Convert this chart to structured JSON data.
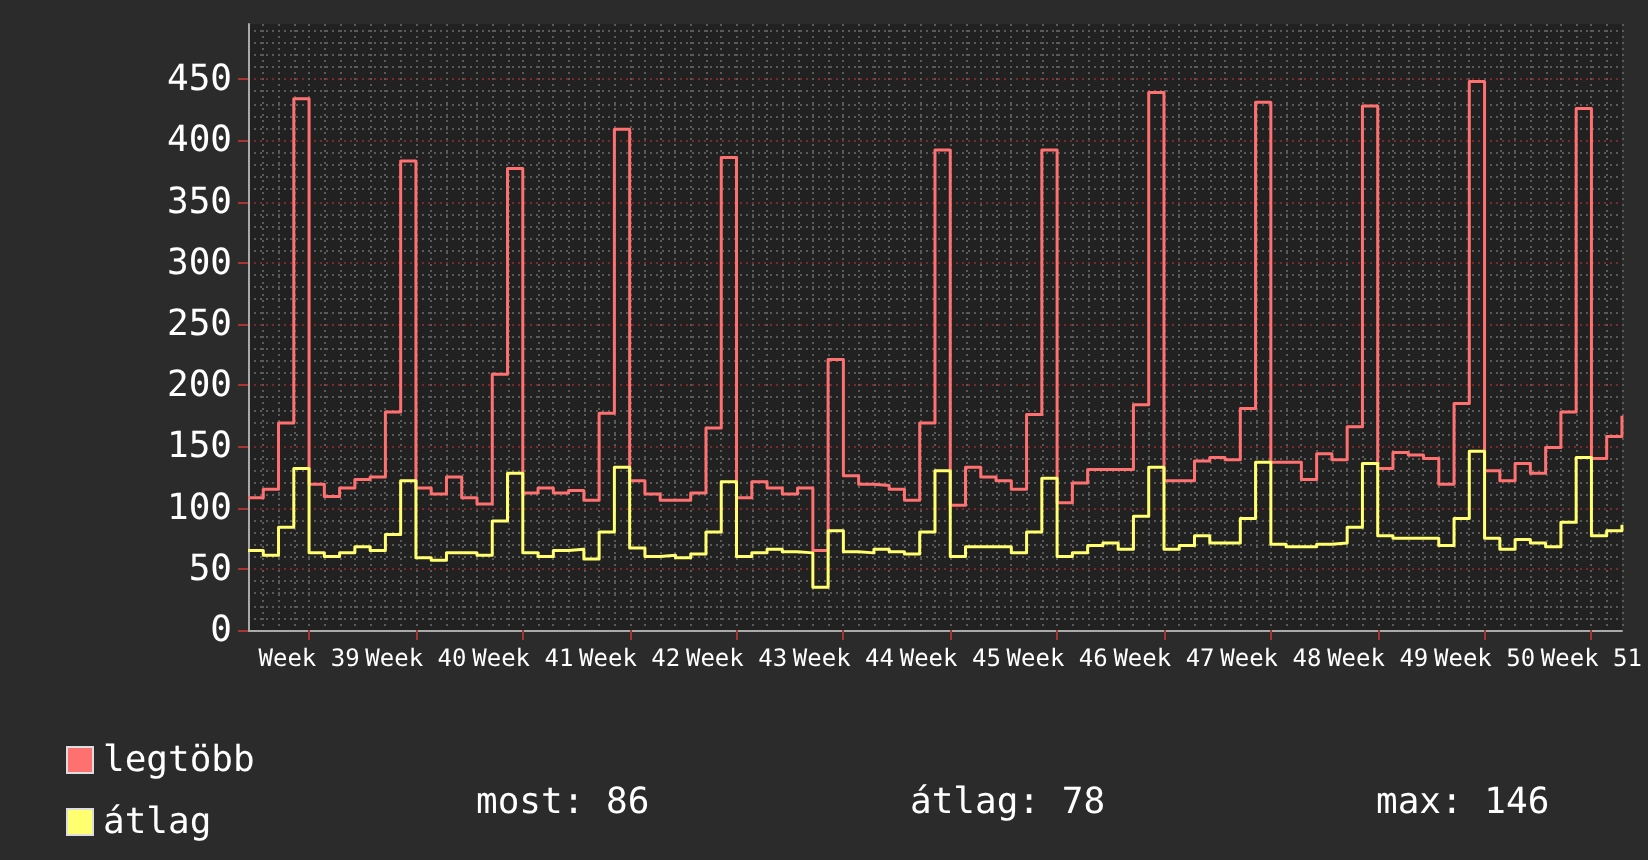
{
  "chart_data": {
    "type": "step",
    "categories": [
      null,
      null,
      null,
      null,
      "Week 39",
      null,
      null,
      null,
      null,
      null,
      null,
      "Week 40",
      null,
      null,
      null,
      null,
      null,
      null,
      "Week 41",
      null,
      null,
      null,
      null,
      null,
      null,
      "Week 42",
      null,
      null,
      null,
      null,
      null,
      null,
      "Week 43",
      null,
      null,
      null,
      null,
      null,
      null,
      "Week 44",
      null,
      null,
      null,
      null,
      null,
      null,
      "Week 45",
      null,
      null,
      null,
      null,
      null,
      null,
      "Week 46",
      null,
      null,
      null,
      null,
      null,
      null,
      "Week 47",
      null,
      null,
      null,
      null,
      null,
      null,
      "Week 48",
      null,
      null,
      null,
      null,
      null,
      null,
      "Week 49",
      null,
      null,
      null,
      null,
      null,
      null,
      "Week 50",
      null,
      null,
      null,
      null,
      null,
      null,
      "Week 51",
      null,
      null
    ],
    "series": [
      {
        "name": "legtöbb",
        "color": "#ff7070",
        "values": [
          108,
          115,
          169,
          434,
          119,
          109,
          116,
          123,
          125,
          178,
          383,
          116,
          111,
          125,
          108,
          103,
          209,
          377,
          112,
          116,
          112,
          114,
          106,
          177,
          409,
          122,
          111,
          106,
          106,
          112,
          165,
          386,
          108,
          121,
          116,
          111,
          116,
          65,
          221,
          126,
          119,
          118,
          115,
          106,
          169,
          392,
          102,
          133,
          125,
          122,
          115,
          176,
          392,
          104,
          120,
          131,
          131,
          131,
          184,
          439,
          122,
          122,
          138,
          141,
          139,
          181,
          431,
          137,
          137,
          123,
          144,
          139,
          166,
          428,
          132,
          145,
          143,
          140,
          119,
          185,
          448,
          130,
          122,
          136,
          128,
          149,
          178,
          426,
          140,
          158,
          175
        ]
      },
      {
        "name": "átlag",
        "color": "#ffff70",
        "values": [
          65,
          61,
          84,
          132,
          63,
          60,
          63,
          68,
          65,
          78,
          122,
          59,
          57,
          63,
          63,
          61,
          89,
          128,
          63,
          60,
          65,
          66,
          58,
          80,
          133,
          67,
          60,
          61,
          59,
          62,
          80,
          121,
          60,
          63,
          66,
          64,
          63,
          35,
          81,
          64,
          63,
          66,
          64,
          62,
          80,
          130,
          60,
          68,
          68,
          68,
          63,
          80,
          124,
          60,
          63,
          69,
          71,
          66,
          93,
          133,
          66,
          69,
          77,
          71,
          71,
          91,
          137,
          70,
          68,
          68,
          70,
          71,
          84,
          136,
          77,
          75,
          75,
          75,
          69,
          91,
          146,
          75,
          66,
          74,
          71,
          68,
          88,
          141,
          77,
          81,
          86
        ]
      }
    ],
    "ylim": [
      0,
      495
    ],
    "yticks": [
      0,
      50,
      100,
      150,
      200,
      250,
      300,
      350,
      400,
      450
    ],
    "grid": true,
    "legend": "bottom left",
    "marker": "none",
    "line_style": "solid",
    "annotations": [
      "most: 86",
      "átlag: 78",
      "max: 146"
    ]
  }
}
